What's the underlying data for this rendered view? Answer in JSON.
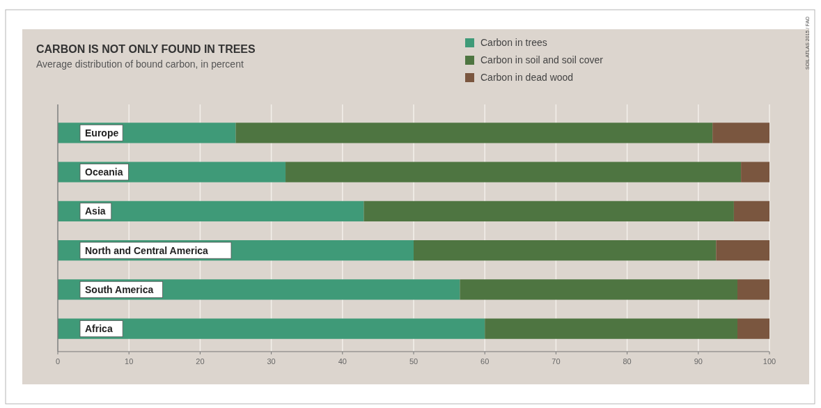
{
  "chart_data": {
    "type": "bar",
    "orientation": "horizontal",
    "stacked": true,
    "title": "CARBON IS NOT ONLY FOUND IN TREES",
    "subtitle": "Average distribution of bound carbon, in percent",
    "categories": [
      "Europe",
      "Oceania",
      "Asia",
      "North and Central America",
      "South America",
      "Africa"
    ],
    "series": [
      {
        "name": "Carbon in trees",
        "color": "#3f9a78",
        "values": [
          25,
          32,
          43,
          50,
          56.5,
          60
        ]
      },
      {
        "name": "Carbon in soil and soil cover",
        "color": "#4e7541",
        "values": [
          67,
          64,
          52,
          42.5,
          39,
          35.5
        ]
      },
      {
        "name": "Carbon in dead wood",
        "color": "#7a563f",
        "values": [
          8,
          4,
          5,
          7.5,
          4.5,
          4.5
        ]
      }
    ],
    "xlim": [
      0,
      100
    ],
    "xticks": [
      0,
      10,
      20,
      30,
      40,
      50,
      60,
      70,
      80,
      90,
      100
    ],
    "grid": "x",
    "legend": "top right",
    "annotations": [
      "SOIL ATLAS 2015 / FAO"
    ]
  }
}
